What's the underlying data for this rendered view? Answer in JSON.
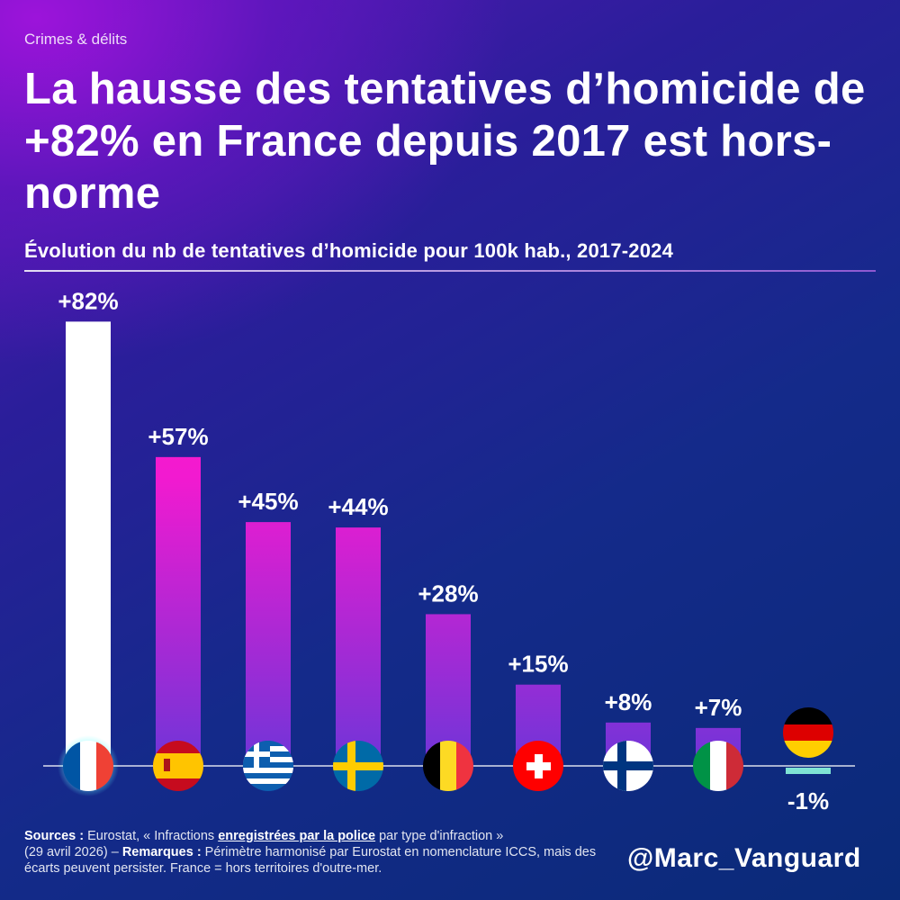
{
  "header": {
    "category": "Crimes & délits",
    "title": "La hausse des tentatives d’homicide de +82% en France depuis 2017 est hors-norme",
    "subtitle": "Évolution du nb de tentatives d’homicide pour 100k hab., 2017-2024"
  },
  "chart_data": {
    "type": "bar",
    "categories": [
      "France",
      "Espagne",
      "Grèce",
      "Suède",
      "Belgique",
      "Suisse",
      "Finlande",
      "Italie",
      "Allemagne"
    ],
    "values": [
      82,
      57,
      45,
      44,
      28,
      15,
      8,
      7,
      -1
    ],
    "labels": [
      "+82%",
      "+57%",
      "+45%",
      "+44%",
      "+28%",
      "+15%",
      "+8%",
      "+7%",
      "-1%"
    ],
    "title": "Évolution du nb de tentatives d’homicide pour 100k hab., 2017-2024",
    "category_axis": "flag icons",
    "colors": {
      "highlight": "#ffffff",
      "positive_top": "#ff1fc4",
      "positive_bottom": "#6f35d8",
      "negative": "#7fe3d4"
    }
  },
  "footer": {
    "sources_label": "Sources :",
    "sources_pre": " Eurostat, « Infractions ",
    "sources_emph": "enregistrées par la police",
    "sources_post": " par type d'infraction »",
    "date": "(29 avril 2026) – ",
    "remarks_label": "Remarques :",
    "remarks_text": " Périmètre harmonisé par Eurostat en nomenclature ICCS, mais des écarts peuvent persister. France = hors territoires d'outre-mer."
  },
  "handle": "@Marc_Vanguard"
}
